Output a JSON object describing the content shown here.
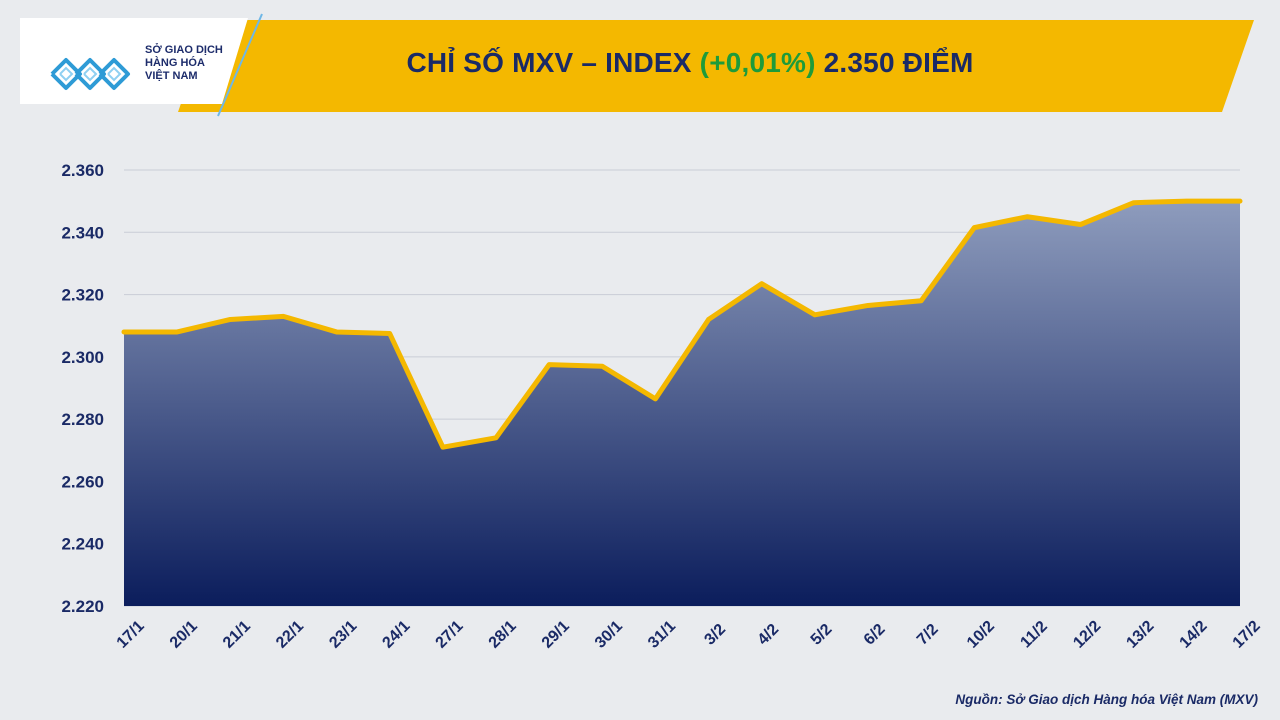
{
  "header": {
    "logo_lines": [
      "SỞ GIAO DỊCH",
      "HÀNG HÓA",
      "VIỆT NAM"
    ],
    "title_main": "CHỈ SỐ MXV – INDEX",
    "title_change": "(+0,01%)",
    "title_value": "2.350 ĐIỂM"
  },
  "source": "Nguồn: Sở Giao dịch Hàng hóa Việt Nam (MXV)",
  "colors": {
    "banner": "#f4b800",
    "title_text": "#1a2a66",
    "change_text": "#1e9b3a",
    "line": "#f4b800",
    "area_top": "#8e9cbd",
    "area_bottom": "#0b1d5c",
    "axis_text": "#1a2a66"
  },
  "chart_data": {
    "type": "area",
    "title": "",
    "xlabel": "",
    "ylabel": "",
    "categories": [
      "17/1",
      "20/1",
      "21/1",
      "22/1",
      "23/1",
      "24/1",
      "27/1",
      "28/1",
      "29/1",
      "30/1",
      "31/1",
      "3/2",
      "4/2",
      "5/2",
      "6/2",
      "7/2",
      "10/2",
      "11/2",
      "12/2",
      "13/2",
      "14/2",
      "17/2"
    ],
    "values": [
      2308,
      2308,
      2312,
      2313,
      2308,
      2307.5,
      2271,
      2274,
      2297.5,
      2297,
      2286.5,
      2312,
      2323.5,
      2313.5,
      2316.5,
      2318,
      2341.5,
      2345,
      2342.5,
      2349.5,
      2350,
      2350
    ],
    "ylim": [
      2220,
      2360
    ],
    "yticks": [
      2220,
      2240,
      2260,
      2280,
      2300,
      2320,
      2340,
      2360
    ],
    "ytick_labels": [
      "2.220",
      "2.240",
      "2.260",
      "2.280",
      "2.300",
      "2.320",
      "2.340",
      "2.360"
    ],
    "grid": true,
    "legend": "none"
  }
}
